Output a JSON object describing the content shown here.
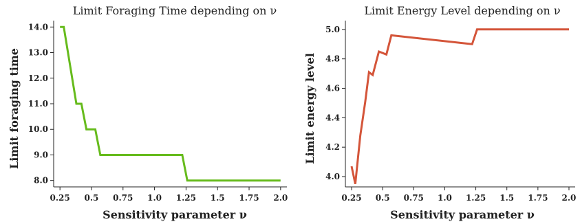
{
  "chart_data": [
    {
      "type": "line",
      "title": "Limit Foraging Time depending on ν",
      "xlabel": "Sensitivity parameter ν",
      "ylabel": "Limit foraging time",
      "xlim": [
        0.2,
        2.05
      ],
      "ylim": [
        7.75,
        14.25
      ],
      "xticks": [
        0.25,
        0.5,
        0.75,
        1.0,
        1.25,
        1.5,
        1.75,
        2.0
      ],
      "xtick_labels": [
        "0.25",
        "0.5",
        "0.75",
        "1.0",
        "1.25",
        "1.5",
        "1.75",
        "2.0"
      ],
      "yticks": [
        8,
        9,
        10,
        11,
        12,
        13,
        14
      ],
      "ytick_labels": [
        "8.0",
        "9.0",
        "10.0",
        "11.0",
        "12.0",
        "13.0",
        "14.0"
      ],
      "grid": false,
      "color": "#66bb1c",
      "series": [
        {
          "x": [
            0.25,
            0.28,
            0.38,
            0.42,
            0.46,
            0.53,
            0.57,
            1.22,
            1.26,
            2.0
          ],
          "y": [
            14.0,
            14.0,
            11.0,
            11.0,
            10.0,
            10.0,
            9.0,
            9.0,
            8.0,
            8.0
          ]
        }
      ]
    },
    {
      "type": "line",
      "title": "Limit Energy Level depending on ν",
      "xlabel": "Sensitivity parameter ν",
      "ylabel": "Limit energy level",
      "xlim": [
        0.2,
        2.05
      ],
      "ylim": [
        3.93,
        5.06
      ],
      "xticks": [
        0.25,
        0.5,
        0.75,
        1.0,
        1.25,
        1.5,
        1.75,
        2.0
      ],
      "xtick_labels": [
        "0.25",
        "0.5",
        "0.75",
        "1.0",
        "1.25",
        "1.5",
        "1.75",
        "2.0"
      ],
      "yticks": [
        4.0,
        4.2,
        4.4,
        4.6,
        4.8,
        5.0
      ],
      "ytick_labels": [
        "4.0",
        "4.2",
        "4.4",
        "4.6",
        "4.8",
        "5.0"
      ],
      "grid": false,
      "color": "#d4553a",
      "series": [
        {
          "x": [
            0.25,
            0.28,
            0.32,
            0.36,
            0.39,
            0.42,
            0.47,
            0.53,
            0.57,
            1.22,
            1.26,
            2.0
          ],
          "y": [
            4.07,
            3.95,
            4.28,
            4.51,
            4.71,
            4.69,
            4.85,
            4.83,
            4.96,
            4.9,
            5.0,
            5.0
          ]
        }
      ]
    }
  ]
}
